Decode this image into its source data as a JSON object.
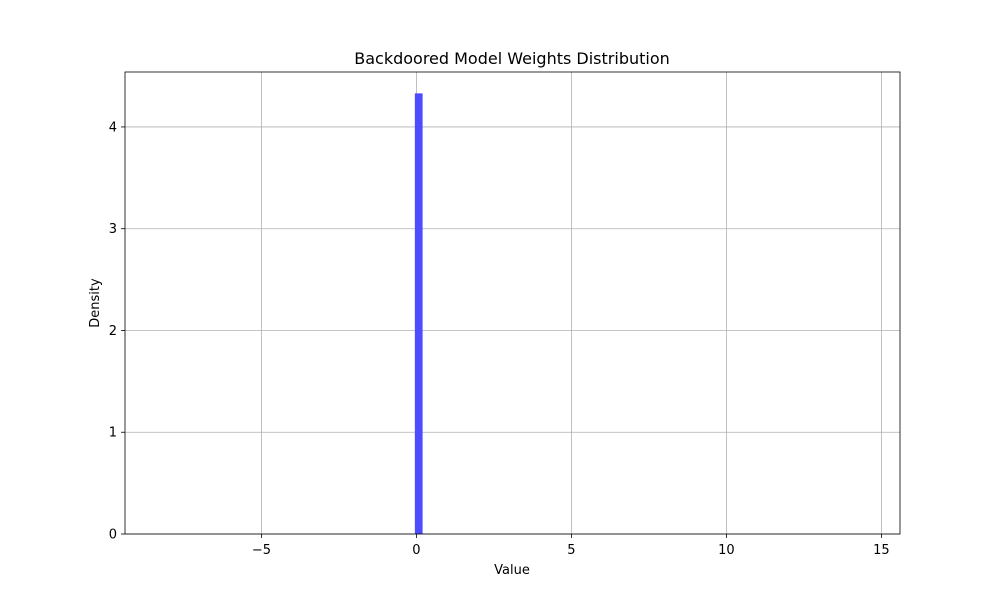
{
  "chart_data": {
    "type": "bar",
    "title": "Backdoored Model Weights Distribution",
    "xlabel": "Value",
    "ylabel": "Density",
    "xlim": [
      -9.4,
      15.6
    ],
    "ylim": [
      0,
      4.54
    ],
    "xticks": [
      -5,
      0,
      5,
      10,
      15
    ],
    "xtick_labels": [
      "−5",
      "0",
      "5",
      "10",
      "15"
    ],
    "yticks": [
      0,
      1,
      2,
      3,
      4
    ],
    "ytick_labels": [
      "0",
      "1",
      "2",
      "3",
      "4"
    ],
    "grid": true,
    "bar_color": "#4d4dff",
    "bins": [
      {
        "x0": -0.05,
        "x1": 0.2,
        "value": 4.33
      }
    ]
  }
}
